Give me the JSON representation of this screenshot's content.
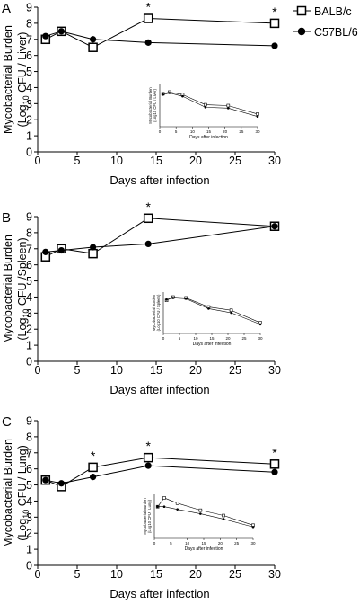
{
  "legend": {
    "items": [
      {
        "label": "BALB/c",
        "marker": "open-square"
      },
      {
        "label": "C57BL/6",
        "marker": "filled-circle"
      }
    ]
  },
  "chart_data": [
    {
      "type": "line",
      "panel_label": "A",
      "ylabel_line1": "Mycobacterial Burden",
      "ylabel_line2_pre": "(Log",
      "ylabel_line2_sub": "10",
      "ylabel_line2_post": " CFU / Liver)",
      "xlabel": "Days after infection",
      "xlim": [
        0,
        30
      ],
      "ylim": [
        0,
        9
      ],
      "xticks": [
        0,
        5,
        10,
        15,
        20,
        25,
        30
      ],
      "yticks": [
        0,
        1,
        2,
        3,
        4,
        5,
        6,
        7,
        8,
        9
      ],
      "x": [
        1,
        3,
        7,
        14,
        30
      ],
      "series": [
        {
          "name": "BALB/c",
          "marker": "square",
          "values": [
            7.0,
            7.5,
            6.5,
            8.3,
            8.0
          ]
        },
        {
          "name": "C57BL/6",
          "marker": "circle",
          "values": [
            7.2,
            7.5,
            7.0,
            6.8,
            6.6
          ]
        }
      ],
      "significance": [
        {
          "x": 14,
          "label": "*"
        },
        {
          "x": 30,
          "label": "*"
        }
      ],
      "inset": {
        "ylabel_line1": "Mycobacterial Burden",
        "ylabel_line2": "(Log10 CFU / Liver)",
        "xlabel": "Days after infection",
        "xticks": [
          0,
          5,
          10,
          15,
          20,
          25,
          30
        ],
        "x": [
          1,
          3,
          7,
          14,
          21,
          30
        ],
        "series": [
          {
            "name": "BALB/c",
            "marker": "square",
            "values": [
              3.9,
              4.1,
              3.8,
              2.6,
              2.5,
              1.5
            ]
          },
          {
            "name": "C57BL/6",
            "marker": "circle",
            "values": [
              3.8,
              4.0,
              3.6,
              2.3,
              2.2,
              1.2
            ]
          }
        ]
      }
    },
    {
      "type": "line",
      "panel_label": "B",
      "ylabel_line1": "Mycobacterial Burden",
      "ylabel_line2_pre": "(Log",
      "ylabel_line2_sub": "10",
      "ylabel_line2_post": " CFU /Spleen)",
      "xlabel": "Days after infection",
      "xlim": [
        0,
        30
      ],
      "ylim": [
        0,
        9
      ],
      "xticks": [
        0,
        5,
        10,
        15,
        20,
        25,
        30
      ],
      "yticks": [
        0,
        1,
        2,
        3,
        4,
        5,
        6,
        7,
        8,
        9
      ],
      "x": [
        1,
        3,
        7,
        14,
        30
      ],
      "series": [
        {
          "name": "BALB/c",
          "marker": "square",
          "values": [
            6.5,
            7.0,
            6.7,
            8.9,
            8.4
          ]
        },
        {
          "name": "C57BL/6",
          "marker": "circle",
          "values": [
            6.8,
            6.9,
            7.1,
            7.3,
            8.4
          ]
        }
      ],
      "significance": [
        {
          "x": 14,
          "label": "*"
        }
      ],
      "inset": {
        "ylabel_line1": "Mycobacterial Burden",
        "ylabel_line2": "(Log10 CFU / Spleen)",
        "xlabel": "Days after infection",
        "xticks": [
          0,
          5,
          10,
          15,
          20,
          25,
          30
        ],
        "x": [
          1,
          3,
          7,
          14,
          21,
          30
        ],
        "series": [
          {
            "name": "BALB/c",
            "marker": "square",
            "values": [
              4.0,
              4.4,
              4.3,
              3.2,
              2.8,
              1.3
            ]
          },
          {
            "name": "C57BL/6",
            "marker": "circle",
            "values": [
              4.1,
              4.3,
              4.2,
              3.0,
              2.5,
              1.1
            ]
          }
        ]
      }
    },
    {
      "type": "line",
      "panel_label": "C",
      "ylabel_line1": "Mycobacterial Burden",
      "ylabel_line2_pre": "(Log",
      "ylabel_line2_sub": "10",
      "ylabel_line2_post": " CFU / Lung)",
      "xlabel": "Days after infection",
      "xlim": [
        0,
        30
      ],
      "ylim": [
        0,
        9
      ],
      "xticks": [
        0,
        5,
        10,
        15,
        20,
        25,
        30
      ],
      "yticks": [
        0,
        1,
        2,
        3,
        4,
        5,
        6,
        7,
        8,
        9
      ],
      "x": [
        1,
        3,
        7,
        14,
        30
      ],
      "series": [
        {
          "name": "BALB/c",
          "marker": "square",
          "values": [
            5.3,
            4.9,
            6.1,
            6.7,
            6.3
          ]
        },
        {
          "name": "C57BL/6",
          "marker": "circle",
          "values": [
            5.3,
            5.1,
            5.5,
            6.2,
            5.8
          ]
        }
      ],
      "significance": [
        {
          "x": 7,
          "label": "*"
        },
        {
          "x": 14,
          "label": "*"
        },
        {
          "x": 30,
          "label": "*"
        }
      ],
      "inset": {
        "ylabel_line1": "Mycobacterial Burden",
        "ylabel_line2": "(Log10 CFU / Lung)",
        "xlabel": "Days after infection",
        "xticks": [
          0,
          5,
          10,
          15,
          20,
          25,
          30
        ],
        "x": [
          1,
          3,
          7,
          14,
          21,
          30
        ],
        "series": [
          {
            "name": "BALB/c",
            "marker": "square",
            "values": [
              3.6,
              4.6,
              4.0,
              3.2,
              2.6,
              1.5
            ]
          },
          {
            "name": "C57BL/6",
            "marker": "circle",
            "values": [
              3.6,
              3.6,
              3.3,
              2.8,
              2.2,
              1.3
            ]
          }
        ]
      }
    }
  ]
}
